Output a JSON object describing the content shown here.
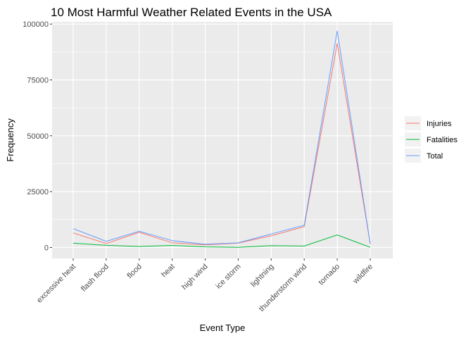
{
  "chart_data": {
    "type": "line",
    "title": "10 Most Harmful Weather Related Events in the USA",
    "xlabel": "Event Type",
    "ylabel": "Frequency",
    "categories": [
      "excessive heat",
      "flash flood",
      "flood",
      "heat",
      "high wind",
      "ice storm",
      "lightning",
      "thunderstorm wind",
      "tornado",
      "wildfire"
    ],
    "ylim": [
      -4900,
      101000
    ],
    "yticks": [
      0,
      25000,
      50000,
      75000,
      100000
    ],
    "ytick_labels": [
      "0",
      "25000",
      "50000",
      "75000",
      "100000"
    ],
    "grid": true,
    "legend_position": "right",
    "series": [
      {
        "name": "Injuries",
        "color": "#F8766D",
        "values": [
          6525,
          1777,
          6789,
          2100,
          1137,
          1975,
          5230,
          9353,
          91346,
          1606
        ]
      },
      {
        "name": "Fatalities",
        "color": "#00BA38",
        "values": [
          1903,
          978,
          470,
          937,
          283,
          89,
          816,
          637,
          5633,
          90
        ]
      },
      {
        "name": "Total",
        "color": "#619CFF",
        "values": [
          8428,
          2755,
          7259,
          3037,
          1420,
          2064,
          6046,
          9990,
          96979,
          1696
        ]
      }
    ]
  }
}
